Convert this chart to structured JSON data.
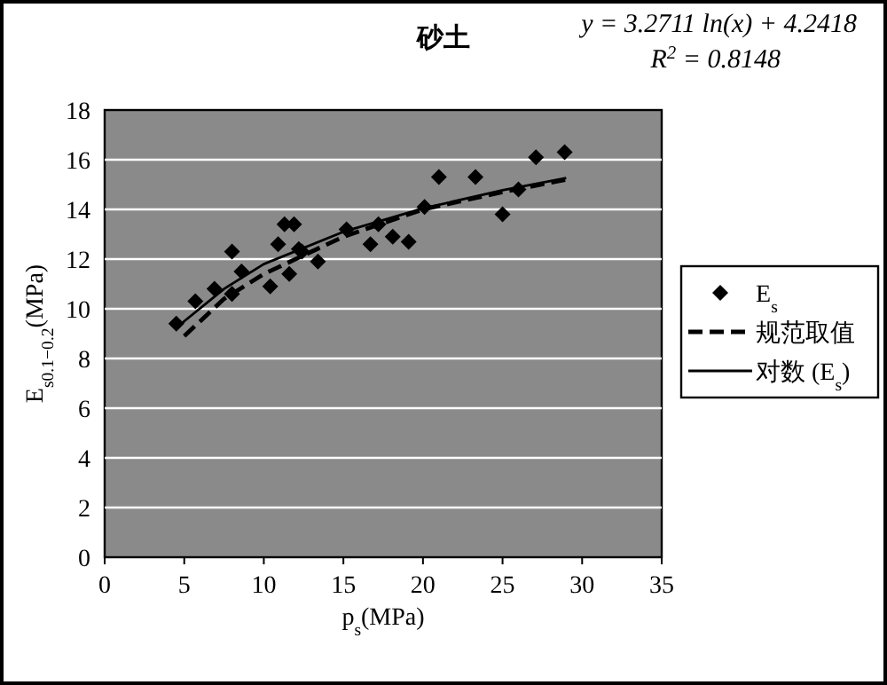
{
  "chart_data": {
    "type": "scatter",
    "title": "砂土",
    "xlabel": "p$_{s}$(MPa)",
    "ylabel": "E$_{s0.1−0.2}$(MPa)",
    "annotations": [
      "y = 3.2711 ln(x) + 4.2418",
      "R$^{2}$ = 0.8148"
    ],
    "xlim": [
      0,
      35
    ],
    "ylim": [
      0,
      18
    ],
    "xticks": [
      0,
      5,
      10,
      15,
      20,
      25,
      30,
      35
    ],
    "yticks": [
      0,
      2,
      4,
      6,
      8,
      10,
      12,
      14,
      16,
      18
    ],
    "grid": "y",
    "legend": "right",
    "series": [
      {
        "name": "E$_{s}$",
        "marker": "diamond",
        "color": "#000000",
        "x": [
          4.5,
          5.7,
          6.9,
          8.0,
          8.0,
          8.6,
          10.4,
          10.9,
          11.3,
          11.9,
          11.6,
          12.2,
          12.4,
          13.4,
          15.2,
          16.7,
          17.2,
          18.1,
          19.1,
          20.1,
          21.0,
          23.3,
          25.0,
          26.0,
          27.1,
          28.9
        ],
        "values": [
          9.4,
          10.3,
          10.8,
          12.3,
          10.6,
          11.5,
          10.9,
          12.6,
          13.4,
          13.4,
          11.4,
          12.4,
          12.3,
          11.9,
          13.2,
          12.6,
          13.4,
          12.9,
          12.7,
          14.1,
          15.3,
          15.3,
          13.8,
          14.8,
          16.1,
          16.3
        ]
      },
      {
        "name": "规范取值",
        "type": "line",
        "line_style": "dashed",
        "color": "#000000",
        "x": [
          5,
          7.5,
          10,
          15,
          20,
          25,
          29
        ],
        "values": [
          8.9,
          10.4,
          11.4,
          12.9,
          14.0,
          14.7,
          15.2
        ]
      },
      {
        "name": "对数 (E$_{s}$)",
        "type": "line",
        "line_style": "solid",
        "color": "#000000",
        "x": [
          4.5,
          5,
          7.5,
          10,
          15,
          20,
          25,
          29
        ],
        "values": [
          9.16,
          9.5,
          10.8,
          11.8,
          13.1,
          14.04,
          14.77,
          15.26
        ]
      }
    ]
  }
}
